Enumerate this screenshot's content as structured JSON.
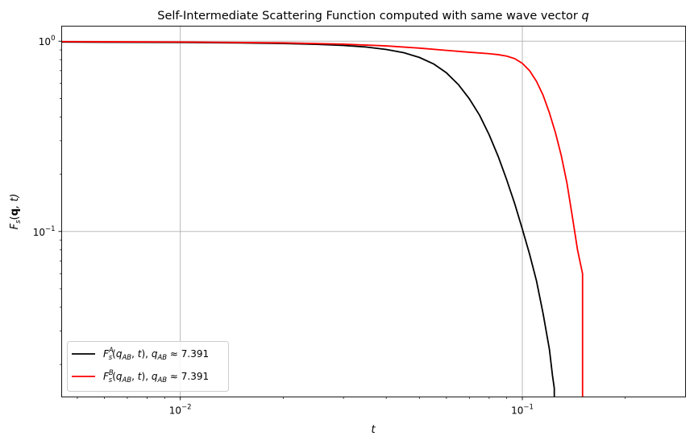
{
  "chart_data": {
    "type": "line",
    "title": "Self-Intermediate Scattering Function computed with same wave vector",
    "title_var": "q",
    "xlabel": {
      "italic": "t"
    },
    "ylabel": {
      "pre": "F",
      "sub": "s",
      "open": "(",
      "bold": "q",
      "rest": ", t)"
    },
    "xscale": "log",
    "yscale": "log",
    "xlim": [
      0.0045,
      0.3
    ],
    "ylim": [
      0.0135,
      1.2
    ],
    "grid": true,
    "legend_position": "lower left",
    "x_ticks": [
      {
        "value": 0.01,
        "base": "10",
        "exp": "−2"
      },
      {
        "value": 0.1,
        "base": "10",
        "exp": "−1"
      }
    ],
    "y_ticks": [
      {
        "value": 1,
        "base": "10",
        "exp": "0"
      },
      {
        "value": 0.1,
        "base": "10",
        "exp": "−1"
      }
    ],
    "series": [
      {
        "name": "F_s^A(q_AB, t), q_AB ≈ 7.391",
        "label_sup": "A",
        "label_tail": "7.391",
        "color": "#000000",
        "x": [
          0.0045,
          0.01,
          0.015,
          0.02,
          0.025,
          0.03,
          0.035,
          0.04,
          0.045,
          0.05,
          0.055,
          0.06,
          0.065,
          0.07,
          0.075,
          0.08,
          0.085,
          0.09,
          0.095,
          0.1,
          0.105,
          0.11,
          0.115,
          0.12,
          0.1225,
          0.124,
          0.124
        ],
        "y": [
          0.99,
          0.985,
          0.98,
          0.972,
          0.963,
          0.95,
          0.932,
          0.905,
          0.87,
          0.822,
          0.76,
          0.682,
          0.592,
          0.498,
          0.408,
          0.322,
          0.248,
          0.187,
          0.14,
          0.103,
          0.076,
          0.055,
          0.037,
          0.024,
          0.0175,
          0.015,
          0.0135
        ]
      },
      {
        "name": "F_s^B(q_AB, t), q_AB ≈ 7.391",
        "label_sup": "B",
        "label_tail": "7.391",
        "color": "#ff0000",
        "x": [
          0.0045,
          0.01,
          0.02,
          0.03,
          0.04,
          0.05,
          0.06,
          0.07,
          0.08,
          0.085,
          0.09,
          0.095,
          0.1,
          0.105,
          0.11,
          0.115,
          0.12,
          0.125,
          0.13,
          0.135,
          0.14,
          0.145,
          0.15,
          0.15
        ],
        "y": [
          0.995,
          0.99,
          0.98,
          0.965,
          0.945,
          0.92,
          0.895,
          0.875,
          0.86,
          0.85,
          0.835,
          0.81,
          0.765,
          0.7,
          0.615,
          0.52,
          0.42,
          0.33,
          0.25,
          0.18,
          0.12,
          0.08,
          0.06,
          0.0135
        ]
      }
    ]
  }
}
